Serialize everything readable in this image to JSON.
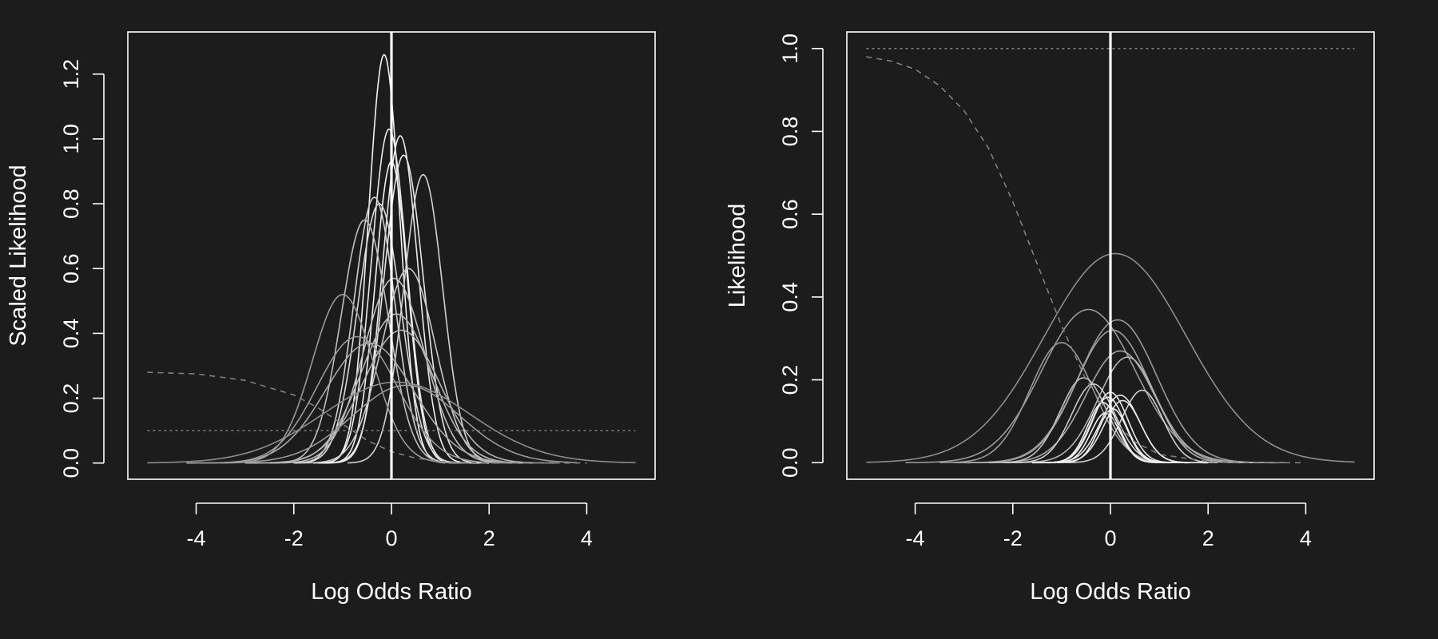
{
  "colors": {
    "background": "#1c1c1c",
    "foreground": "#ffffff",
    "zero_line": "#ffffff",
    "dashed_curve": "#7f7f7f",
    "dotted_line": "#808080"
  },
  "chart_data": [
    {
      "type": "line",
      "xlabel": "Log Odds Ratio",
      "ylabel": "Scaled Likelihood",
      "xlim": [
        -5.4,
        5.4
      ],
      "ylim": [
        -0.05,
        1.33
      ],
      "xticks": [
        -4,
        -2,
        0,
        2,
        4
      ],
      "xtick_labels": [
        "-4",
        "-2",
        "0",
        "2",
        "4"
      ],
      "yticks": [
        0,
        0.2,
        0.4,
        0.6,
        0.8,
        1.0,
        1.2
      ],
      "ytick_labels": [
        "0.0",
        "0.2",
        "0.4",
        "0.6",
        "0.8",
        "1.0",
        "1.2"
      ],
      "grid": false,
      "vertical_line_x": 0,
      "series": [
        {
          "mu": -0.15,
          "sd": 0.32,
          "peak": 1.26,
          "xr": [
            -1.4,
            1.1
          ],
          "shade": 0.95
        },
        {
          "mu": -0.05,
          "sd": 0.36,
          "peak": 1.03,
          "xr": [
            -1.6,
            1.4
          ],
          "shade": 0.92
        },
        {
          "mu": 0.18,
          "sd": 0.36,
          "peak": 1.01,
          "xr": [
            -1.4,
            1.8
          ],
          "shade": 0.92
        },
        {
          "mu": 0.25,
          "sd": 0.4,
          "peak": 0.95,
          "xr": [
            -1.5,
            2.0
          ],
          "shade": 0.9
        },
        {
          "mu": 0.0,
          "sd": 0.33,
          "peak": 0.93,
          "xr": [
            -1.5,
            1.6
          ],
          "shade": 0.95
        },
        {
          "mu": 0.65,
          "sd": 0.4,
          "peak": 0.89,
          "xr": [
            -0.9,
            2.2
          ],
          "shade": 0.82
        },
        {
          "mu": -0.35,
          "sd": 0.42,
          "peak": 0.82,
          "xr": [
            -2.0,
            1.5
          ],
          "shade": 0.82
        },
        {
          "mu": -0.25,
          "sd": 0.44,
          "peak": 0.8,
          "xr": [
            -2.0,
            1.7
          ],
          "shade": 0.85
        },
        {
          "mu": -0.55,
          "sd": 0.48,
          "peak": 0.75,
          "xr": [
            -2.5,
            1.6
          ],
          "shade": 0.75
        },
        {
          "mu": 0.35,
          "sd": 0.55,
          "peak": 0.6,
          "xr": [
            -2.0,
            2.5
          ],
          "shade": 0.78
        },
        {
          "mu": 0.05,
          "sd": 0.62,
          "peak": 0.57,
          "xr": [
            -2.5,
            2.7
          ],
          "shade": 0.75
        },
        {
          "mu": -1.0,
          "sd": 0.62,
          "peak": 0.52,
          "xr": [
            -3.5,
            1.6
          ],
          "shade": 0.6
        },
        {
          "mu": 0.1,
          "sd": 0.72,
          "peak": 0.46,
          "xr": [
            -3.0,
            3.0
          ],
          "shade": 0.72
        },
        {
          "mu": 0.2,
          "sd": 0.78,
          "peak": 0.41,
          "xr": [
            -3.0,
            3.4
          ],
          "shade": 0.7
        },
        {
          "mu": -0.7,
          "sd": 0.82,
          "peak": 0.39,
          "xr": [
            -4.0,
            2.5
          ],
          "shade": 0.6
        },
        {
          "mu": -0.45,
          "sd": 0.9,
          "peak": 0.37,
          "xr": [
            -4.2,
            3.0
          ],
          "shade": 0.65
        },
        {
          "mu": 0.1,
          "sd": 1.5,
          "peak": 0.25,
          "xr": [
            -5.0,
            5.0
          ],
          "shade": 0.55
        },
        {
          "mu": 0.3,
          "sd": 1.1,
          "peak": 0.24,
          "xr": [
            -4.0,
            3.8
          ],
          "shade": 0.6
        }
      ],
      "reference": {
        "dashed": {
          "x": [
            -5,
            -4,
            -3,
            -2,
            -1.5,
            -1,
            -0.5,
            0,
            0.5,
            1,
            2,
            3,
            4
          ],
          "y": [
            0.28,
            0.275,
            0.255,
            0.21,
            0.17,
            0.12,
            0.07,
            0.035,
            0.015,
            0.005,
            0.0,
            0.0,
            0.0
          ]
        },
        "dotted_y": 0.1
      }
    },
    {
      "type": "line",
      "xlabel": "Log Odds Ratio",
      "ylabel": "Likelihood",
      "xlim": [
        -5.4,
        5.4
      ],
      "ylim": [
        -0.04,
        1.04
      ],
      "xticks": [
        -4,
        -2,
        0,
        2,
        4
      ],
      "xtick_labels": [
        "-4",
        "-2",
        "0",
        "2",
        "4"
      ],
      "yticks": [
        0,
        0.2,
        0.4,
        0.6,
        0.8,
        1.0
      ],
      "ytick_labels": [
        "0.0",
        "0.2",
        "0.4",
        "0.6",
        "0.8",
        "1.0"
      ],
      "grid": false,
      "vertical_line_x": 0,
      "series": [
        {
          "mu": 0.1,
          "sd": 1.45,
          "peak": 0.505,
          "xr": [
            -5.0,
            5.0
          ],
          "shade": 0.55
        },
        {
          "mu": -0.45,
          "sd": 0.95,
          "peak": 0.37,
          "xr": [
            -4.2,
            3.0
          ],
          "shade": 0.6
        },
        {
          "mu": 0.15,
          "sd": 0.8,
          "peak": 0.345,
          "xr": [
            -3.2,
            3.6
          ],
          "shade": 0.6
        },
        {
          "mu": 0.05,
          "sd": 0.75,
          "peak": 0.32,
          "xr": [
            -3.0,
            3.2
          ],
          "shade": 0.62
        },
        {
          "mu": -1.0,
          "sd": 0.65,
          "peak": 0.29,
          "xr": [
            -3.5,
            1.6
          ],
          "shade": 0.6
        },
        {
          "mu": 0.2,
          "sd": 0.7,
          "peak": 0.27,
          "xr": [
            -3.0,
            3.4
          ],
          "shade": 0.65
        },
        {
          "mu": 0.35,
          "sd": 0.6,
          "peak": 0.255,
          "xr": [
            -2.0,
            3.0
          ],
          "shade": 0.7
        },
        {
          "mu": -0.55,
          "sd": 0.48,
          "peak": 0.205,
          "xr": [
            -2.5,
            1.6
          ],
          "shade": 0.75
        },
        {
          "mu": -0.35,
          "sd": 0.45,
          "peak": 0.19,
          "xr": [
            -2.2,
            1.6
          ],
          "shade": 0.8
        },
        {
          "mu": 0.65,
          "sd": 0.42,
          "peak": 0.175,
          "xr": [
            -0.9,
            2.2
          ],
          "shade": 0.82
        },
        {
          "mu": 0.0,
          "sd": 0.36,
          "peak": 0.17,
          "xr": [
            -1.6,
            1.6
          ],
          "shade": 0.9
        },
        {
          "mu": 0.2,
          "sd": 0.4,
          "peak": 0.163,
          "xr": [
            -1.5,
            2.0
          ],
          "shade": 0.9
        },
        {
          "mu": -0.05,
          "sd": 0.35,
          "peak": 0.158,
          "xr": [
            -1.6,
            1.4
          ],
          "shade": 0.92
        },
        {
          "mu": 0.25,
          "sd": 0.38,
          "peak": 0.15,
          "xr": [
            -1.5,
            2.0
          ],
          "shade": 0.9
        },
        {
          "mu": -0.15,
          "sd": 0.32,
          "peak": 0.145,
          "xr": [
            -1.4,
            1.2
          ],
          "shade": 0.95
        },
        {
          "mu": 0.05,
          "sd": 0.3,
          "peak": 0.13,
          "xr": [
            -1.3,
            1.3
          ],
          "shade": 0.95
        },
        {
          "mu": -0.1,
          "sd": 0.3,
          "peak": 0.12,
          "xr": [
            -1.3,
            1.2
          ],
          "shade": 0.95
        }
      ],
      "reference": {
        "dashed": {
          "x": [
            -5,
            -4.5,
            -4,
            -3.5,
            -3,
            -2.5,
            -2,
            -1.5,
            -1,
            -0.5,
            0,
            0.5,
            1,
            2,
            3,
            4
          ],
          "y": [
            0.98,
            0.97,
            0.95,
            0.91,
            0.85,
            0.76,
            0.63,
            0.48,
            0.33,
            0.2,
            0.11,
            0.05,
            0.02,
            0.003,
            0.0,
            0.0
          ]
        },
        "dotted_y": 1.0
      }
    }
  ]
}
